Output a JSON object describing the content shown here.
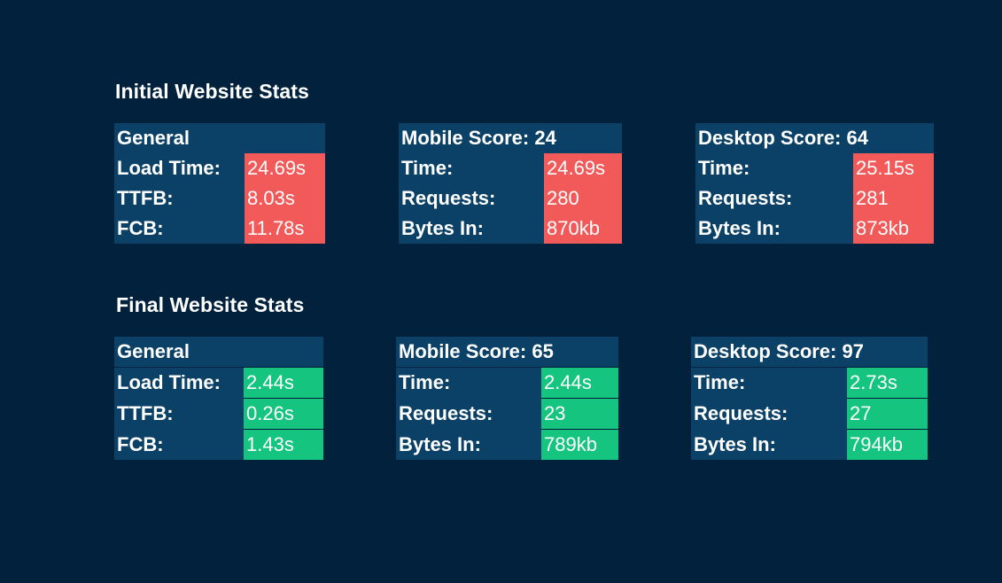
{
  "colors": {
    "background": "#02213d",
    "table_bg": "#0b4166",
    "bad": "#f25a5a",
    "good": "#14c47f"
  },
  "initial": {
    "title": "Initial Website Stats",
    "general": {
      "heading": "General",
      "rows": [
        {
          "label": "Load Time:",
          "value": "24.69s"
        },
        {
          "label": "TTFB:",
          "value": "8.03s"
        },
        {
          "label": "FCB:",
          "value": "11.78s"
        }
      ]
    },
    "mobile": {
      "heading": "Mobile Score: 24",
      "rows": [
        {
          "label": "Time:",
          "value": "24.69s"
        },
        {
          "label": "Requests:",
          "value": "280"
        },
        {
          "label": "Bytes In:",
          "value": "870kb"
        }
      ]
    },
    "desktop": {
      "heading": "Desktop Score: 64",
      "rows": [
        {
          "label": "Time:",
          "value": "25.15s"
        },
        {
          "label": "Requests:",
          "value": "281"
        },
        {
          "label": "Bytes In:",
          "value": "873kb"
        }
      ]
    }
  },
  "final": {
    "title": "Final Website Stats",
    "general": {
      "heading": "General",
      "rows": [
        {
          "label": "Load Time:",
          "value": "2.44s"
        },
        {
          "label": "TTFB:",
          "value": "0.26s"
        },
        {
          "label": "FCB:",
          "value": "1.43s"
        }
      ]
    },
    "mobile": {
      "heading": "Mobile Score: 65",
      "rows": [
        {
          "label": "Time:",
          "value": "2.44s"
        },
        {
          "label": "Requests:",
          "value": "23"
        },
        {
          "label": "Bytes In:",
          "value": "789kb"
        }
      ]
    },
    "desktop": {
      "heading": "Desktop Score: 97",
      "rows": [
        {
          "label": "Time:",
          "value": "2.73s"
        },
        {
          "label": "Requests:",
          "value": "27"
        },
        {
          "label": "Bytes In:",
          "value": "794kb"
        }
      ]
    }
  }
}
